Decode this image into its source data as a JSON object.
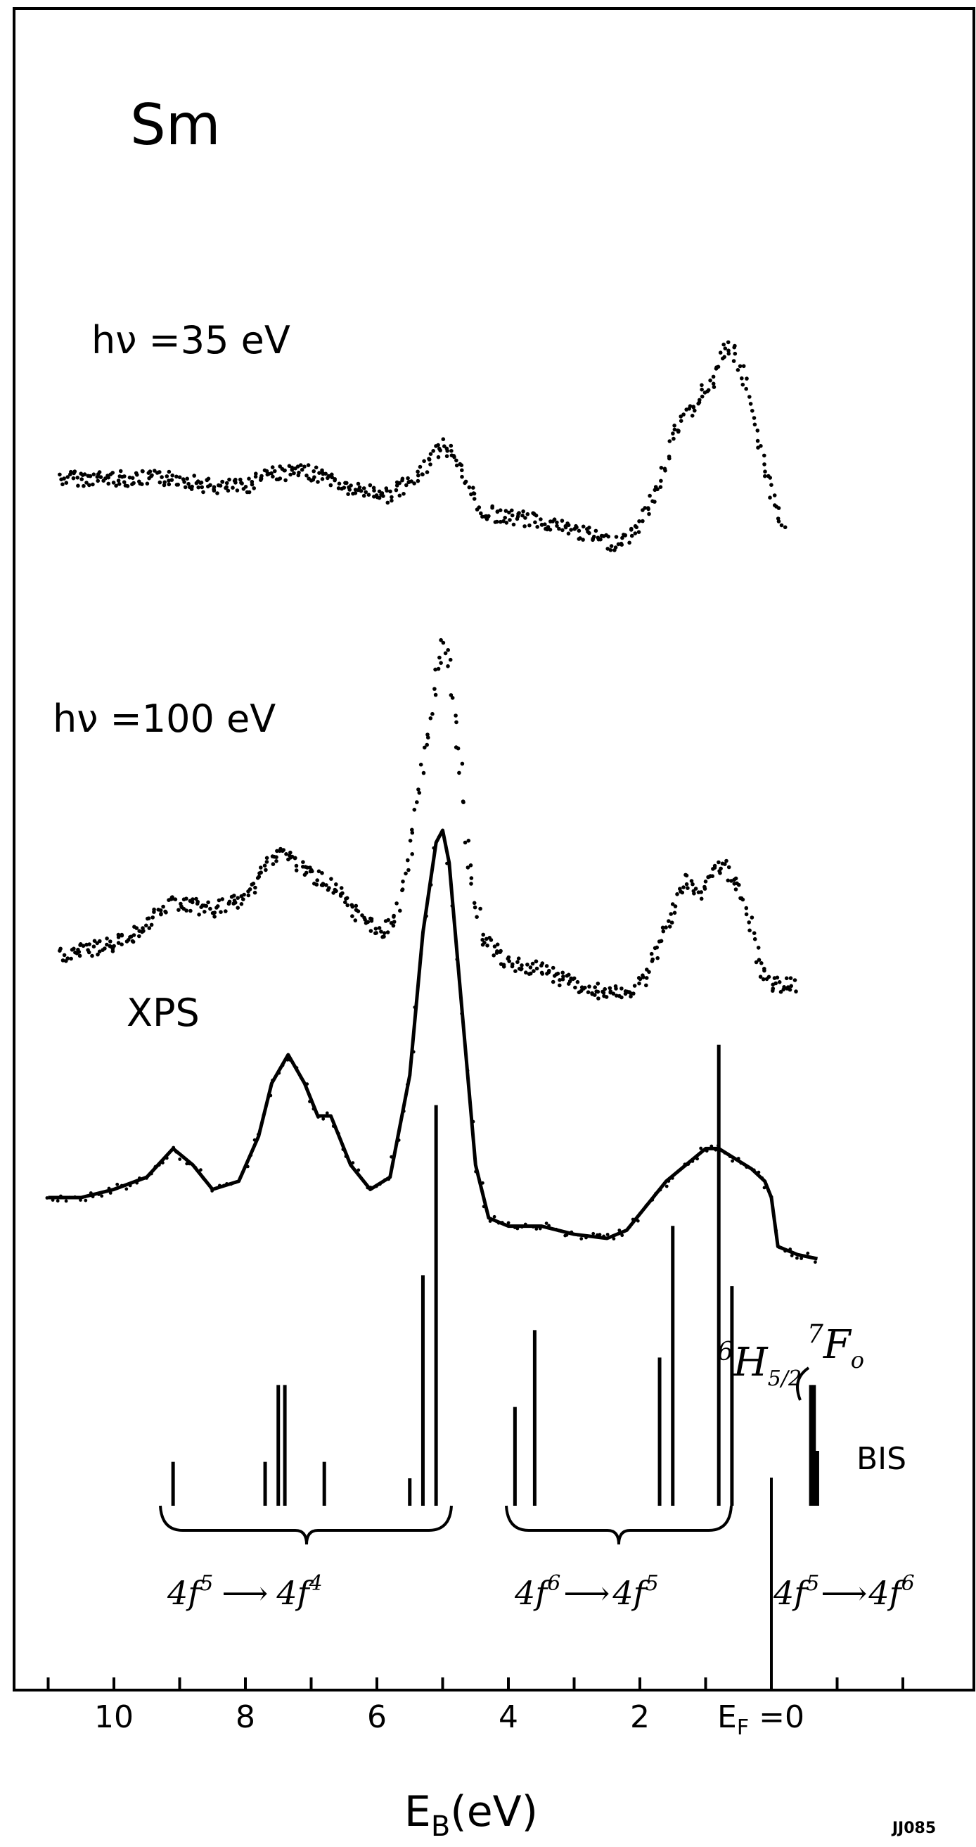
{
  "chart_data": {
    "type": "scatter",
    "element_label": "Sm",
    "xlabel": "E",
    "xlabel_sub": "B",
    "xlabel_unit": "(eV)",
    "x_reversed": true,
    "xlim": [
      11,
      -2.6
    ],
    "x_ticks": [
      10,
      8,
      6,
      4,
      2
    ],
    "x_tick_fermi_label": "E",
    "x_tick_fermi_sub": "F",
    "x_tick_fermi_suffix": " =0",
    "grid": false,
    "legend": "none",
    "figure_code": "JJ085",
    "series": [
      {
        "name": "hν =35 eV",
        "style": "dots",
        "points": [
          [
            10.8,
            0.2
          ],
          [
            10.0,
            0.2
          ],
          [
            9.0,
            0.2
          ],
          [
            8.5,
            0.17
          ],
          [
            8.0,
            0.17
          ],
          [
            7.7,
            0.22
          ],
          [
            7.0,
            0.22
          ],
          [
            6.7,
            0.2
          ],
          [
            6.4,
            0.16
          ],
          [
            6.0,
            0.15
          ],
          [
            5.8,
            0.14
          ],
          [
            5.4,
            0.2
          ],
          [
            5.0,
            0.33
          ],
          [
            4.7,
            0.22
          ],
          [
            4.4,
            0.08
          ],
          [
            4.0,
            0.06
          ],
          [
            3.5,
            0.05
          ],
          [
            3.2,
            0.03
          ],
          [
            2.8,
            0.0
          ],
          [
            2.4,
            -0.03
          ],
          [
            2.1,
            0.0
          ],
          [
            1.7,
            0.18
          ],
          [
            1.5,
            0.36
          ],
          [
            1.2,
            0.45
          ],
          [
            0.9,
            0.55
          ],
          [
            0.7,
            0.66
          ],
          [
            0.6,
            0.66
          ],
          [
            0.4,
            0.55
          ],
          [
            0.2,
            0.32
          ],
          [
            0.0,
            0.15
          ],
          [
            -0.2,
            0.0
          ]
        ]
      },
      {
        "name": "hν =100 eV",
        "style": "dots",
        "points": [
          [
            10.8,
            0.08
          ],
          [
            10.0,
            0.12
          ],
          [
            9.6,
            0.17
          ],
          [
            9.1,
            0.27
          ],
          [
            8.5,
            0.24
          ],
          [
            8.0,
            0.28
          ],
          [
            7.7,
            0.4
          ],
          [
            7.4,
            0.45
          ],
          [
            7.1,
            0.38
          ],
          [
            6.7,
            0.33
          ],
          [
            6.3,
            0.22
          ],
          [
            5.9,
            0.16
          ],
          [
            5.7,
            0.22
          ],
          [
            5.5,
            0.45
          ],
          [
            5.3,
            0.75
          ],
          [
            5.1,
            1.05
          ],
          [
            5.0,
            1.2
          ],
          [
            4.9,
            1.1
          ],
          [
            4.7,
            0.7
          ],
          [
            4.6,
            0.4
          ],
          [
            4.4,
            0.15
          ],
          [
            4.0,
            0.05
          ],
          [
            3.5,
            0.03
          ],
          [
            3.0,
            -0.02
          ],
          [
            2.6,
            -0.05
          ],
          [
            2.2,
            -0.06
          ],
          [
            1.9,
            0.0
          ],
          [
            1.6,
            0.18
          ],
          [
            1.3,
            0.35
          ],
          [
            1.1,
            0.3
          ],
          [
            0.9,
            0.38
          ],
          [
            0.7,
            0.4
          ],
          [
            0.5,
            0.32
          ],
          [
            0.3,
            0.18
          ],
          [
            0.2,
            0.05
          ],
          [
            0.0,
            -0.02
          ],
          [
            -0.4,
            -0.03
          ]
        ]
      },
      {
        "name": "XPS",
        "style": "line",
        "points": [
          [
            11.0,
            0.1
          ],
          [
            10.5,
            0.1
          ],
          [
            10.0,
            0.12
          ],
          [
            9.5,
            0.15
          ],
          [
            9.1,
            0.22
          ],
          [
            8.8,
            0.18
          ],
          [
            8.5,
            0.12
          ],
          [
            8.1,
            0.14
          ],
          [
            7.8,
            0.25
          ],
          [
            7.6,
            0.38
          ],
          [
            7.35,
            0.45
          ],
          [
            7.1,
            0.38
          ],
          [
            6.9,
            0.3
          ],
          [
            6.7,
            0.3
          ],
          [
            6.4,
            0.18
          ],
          [
            6.1,
            0.12
          ],
          [
            5.8,
            0.15
          ],
          [
            5.5,
            0.4
          ],
          [
            5.3,
            0.75
          ],
          [
            5.1,
            0.97
          ],
          [
            5.0,
            1.0
          ],
          [
            4.9,
            0.92
          ],
          [
            4.7,
            0.55
          ],
          [
            4.5,
            0.18
          ],
          [
            4.3,
            0.05
          ],
          [
            4.0,
            0.03
          ],
          [
            3.5,
            0.03
          ],
          [
            3.0,
            0.01
          ],
          [
            2.5,
            0.0
          ],
          [
            2.2,
            0.02
          ],
          [
            1.9,
            0.08
          ],
          [
            1.6,
            0.14
          ],
          [
            1.3,
            0.18
          ],
          [
            1.0,
            0.22
          ],
          [
            0.8,
            0.22
          ],
          [
            0.6,
            0.2
          ],
          [
            0.3,
            0.17
          ],
          [
            0.1,
            0.14
          ],
          [
            0.0,
            0.1
          ],
          [
            -0.1,
            -0.02
          ],
          [
            -0.4,
            -0.04
          ],
          [
            -0.7,
            -0.05
          ]
        ]
      },
      {
        "name": "BIS",
        "style": "sticks",
        "points": [
          [
            9.1,
            0.08
          ],
          [
            7.7,
            0.08
          ],
          [
            7.5,
            0.22
          ],
          [
            7.4,
            0.22
          ],
          [
            6.8,
            0.08
          ],
          [
            5.5,
            0.05
          ],
          [
            5.3,
            0.42
          ],
          [
            5.1,
            0.73
          ],
          [
            3.9,
            0.18
          ],
          [
            3.6,
            0.32
          ],
          [
            1.7,
            0.27
          ],
          [
            1.5,
            0.51
          ],
          [
            0.8,
            0.84
          ],
          [
            0.6,
            0.4
          ],
          [
            -0.6,
            0.22
          ],
          [
            -0.65,
            0.22
          ],
          [
            -0.7,
            0.1
          ]
        ]
      }
    ],
    "annotations": {
      "group1": {
        "a": "4f",
        "a_sup": "5",
        "b": "4f",
        "b_sup": "4"
      },
      "group2": {
        "a": "4f",
        "a_sup": "6",
        "b": "4f",
        "b_sup": "5"
      },
      "group3": {
        "a": "4f",
        "a_sup": "5",
        "b": "4f",
        "b_sup": "6"
      },
      "term1": {
        "sup": "6",
        "main": "H",
        "sub": "5/2"
      },
      "term2": {
        "sup": "7",
        "main": "F",
        "sub": "o"
      },
      "arrow": "⟶"
    },
    "colors": {
      "ink": "#000000",
      "paper": "#ffffff"
    }
  }
}
